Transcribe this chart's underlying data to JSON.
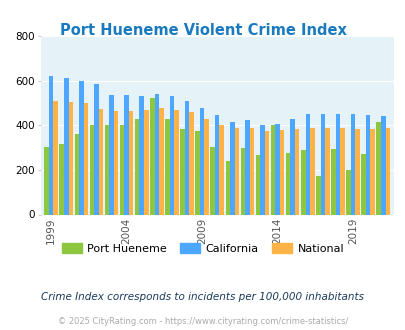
{
  "title": "Port Hueneme Violent Crime Index",
  "subtitle": "Crime Index corresponds to incidents per 100,000 inhabitants",
  "footer": "© 2025 CityRating.com - https://www.cityrating.com/crime-statistics/",
  "years": [
    1999,
    2000,
    2001,
    2002,
    2003,
    2004,
    2005,
    2006,
    2007,
    2008,
    2009,
    2010,
    2011,
    2012,
    2013,
    2014,
    2015,
    2016,
    2017,
    2018,
    2019,
    2020,
    2021
  ],
  "port_hueneme": [
    305,
    315,
    360,
    400,
    400,
    400,
    430,
    525,
    430,
    385,
    375,
    305,
    240,
    300,
    265,
    400,
    275,
    290,
    175,
    295,
    200,
    270,
    415
  ],
  "california": [
    622,
    615,
    598,
    585,
    535,
    535,
    530,
    540,
    530,
    510,
    478,
    445,
    415,
    425,
    400,
    405,
    430,
    450,
    450,
    450,
    450,
    448,
    440
  ],
  "national": [
    510,
    507,
    500,
    475,
    465,
    465,
    470,
    478,
    470,
    458,
    430,
    403,
    390,
    388,
    373,
    380,
    385,
    390,
    388,
    387,
    383,
    385,
    390
  ],
  "colors": {
    "port_hueneme": "#8dc63f",
    "california": "#4da6ff",
    "national": "#ffb347"
  },
  "background_color": "#e5f2f8",
  "ylim": [
    0,
    800
  ],
  "yticks": [
    0,
    200,
    400,
    600,
    800
  ],
  "xtick_years": [
    1999,
    2004,
    2009,
    2014,
    2019
  ],
  "legend_labels": [
    "Port Hueneme",
    "California",
    "National"
  ],
  "title_color": "#1a7abf",
  "subtitle_color": "#1a3a5c",
  "footer_color": "#aaaaaa",
  "grid_color": "#ffffff"
}
